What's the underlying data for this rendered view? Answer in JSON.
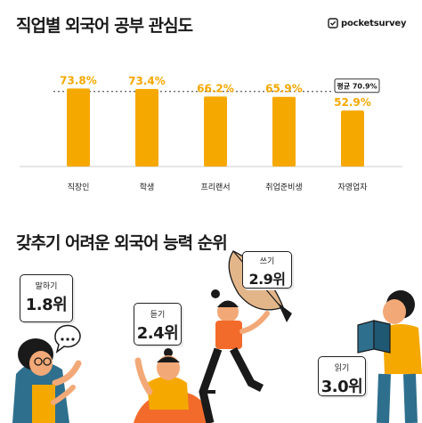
{
  "header": {
    "title": "직업별 외국어 공부 관심도",
    "brand": "pocketsurvey"
  },
  "chart_data": {
    "type": "bar",
    "title": "직업별 외국어 공부 관심도",
    "categories": [
      "직장인",
      "학생",
      "프리랜서",
      "취업준비생",
      "자영업자"
    ],
    "values": [
      73.8,
      73.4,
      66.2,
      65.9,
      52.9
    ],
    "value_labels": [
      "73.8%",
      "73.4%",
      "66.2%",
      "65.9%",
      "52.9%"
    ],
    "ylim": [
      0,
      80
    ],
    "average": {
      "value": 70.9,
      "label": "평균 70.9%"
    },
    "bar_color": "#F5A800",
    "label_color": "#F5A800",
    "grid": false
  },
  "section2": {
    "title": "갖추기 어려운 외국어 능력 순위",
    "cards": {
      "speak": {
        "label": "말하기",
        "value": "1.8위"
      },
      "listen": {
        "label": "듣기",
        "value": "2.4위"
      },
      "write": {
        "label": "쓰기",
        "value": "2.9위"
      },
      "read": {
        "label": "읽기",
        "value": "3.0위"
      }
    }
  },
  "colors": {
    "accent": "#F5A800",
    "orange": "#F26B2B",
    "teal": "#2E6F8E",
    "dark": "#1A1A1A"
  }
}
